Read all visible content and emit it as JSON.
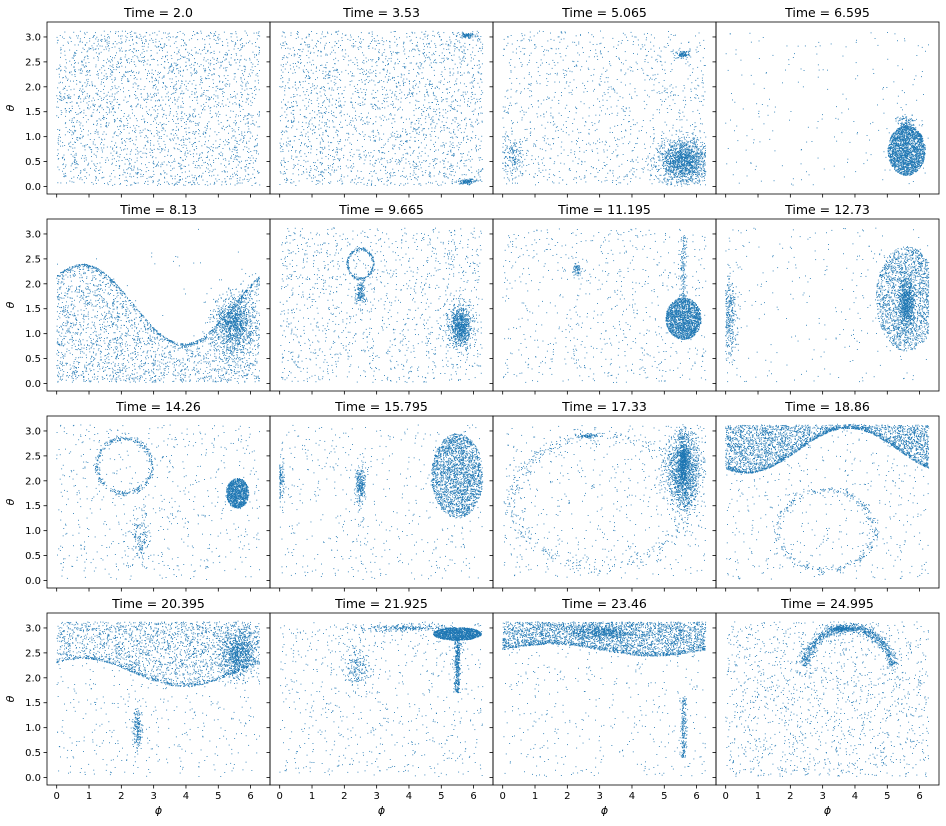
{
  "figure": {
    "xlabel": "ϕ",
    "ylabel": "θ",
    "point_color": "#1f77b4"
  },
  "chart_data": [
    {
      "type": "scatter",
      "title": "Time = 2.0",
      "xlim": [
        -0.3,
        6.6
      ],
      "ylim": [
        -0.15,
        3.3
      ],
      "x_ticks": [
        "0",
        "1",
        "2",
        "3",
        "4",
        "5",
        "6"
      ],
      "y_ticks": [
        "0.0",
        "0.5",
        "1.0",
        "1.5",
        "2.0",
        "2.5",
        "3.0"
      ],
      "features": [
        {
          "kind": "uniform",
          "n": 2600
        }
      ]
    },
    {
      "type": "scatter",
      "title": "Time = 3.53",
      "xlim": [
        -0.3,
        6.6
      ],
      "ylim": [
        -0.15,
        3.3
      ],
      "x_ticks": [
        "0",
        "1",
        "2",
        "3",
        "4",
        "5",
        "6"
      ],
      "y_ticks": [
        "0.0",
        "0.5",
        "1.0",
        "1.5",
        "2.0",
        "2.5",
        "3.0"
      ],
      "features": [
        {
          "kind": "uniform",
          "n": 2300
        },
        {
          "kind": "blob",
          "cx": 5.8,
          "cy": 0.1,
          "rx": 0.3,
          "ry": 0.05,
          "n": 120
        },
        {
          "kind": "blob",
          "cx": 5.8,
          "cy": 3.03,
          "rx": 0.3,
          "ry": 0.05,
          "n": 100
        }
      ]
    },
    {
      "type": "scatter",
      "title": "Time = 5.065",
      "xlim": [
        -0.3,
        6.6
      ],
      "ylim": [
        -0.15,
        3.3
      ],
      "x_ticks": [
        "0",
        "1",
        "2",
        "3",
        "4",
        "5",
        "6"
      ],
      "y_ticks": [
        "0.0",
        "0.5",
        "1.0",
        "1.5",
        "2.0",
        "2.5",
        "3.0"
      ],
      "features": [
        {
          "kind": "uniform",
          "n": 1100
        },
        {
          "kind": "blob",
          "cx": 5.6,
          "cy": 0.5,
          "rx": 0.75,
          "ry": 0.45,
          "n": 1600
        },
        {
          "kind": "blob",
          "cx": 5.6,
          "cy": 2.65,
          "rx": 0.2,
          "ry": 0.08,
          "n": 120
        },
        {
          "kind": "blob",
          "cx": 0.3,
          "cy": 0.6,
          "rx": 0.35,
          "ry": 0.45,
          "n": 150
        }
      ]
    },
    {
      "type": "scatter",
      "title": "Time = 6.595",
      "xlim": [
        -0.3,
        6.6
      ],
      "ylim": [
        -0.15,
        3.3
      ],
      "x_ticks": [
        "0",
        "1",
        "2",
        "3",
        "4",
        "5",
        "6"
      ],
      "y_ticks": [
        "0.0",
        "0.5",
        "1.0",
        "1.5",
        "2.0",
        "2.5",
        "3.0"
      ],
      "features": [
        {
          "kind": "uniform",
          "n": 200
        },
        {
          "kind": "disc",
          "cx": 5.6,
          "cy": 0.72,
          "rx": 0.58,
          "ry": 0.5,
          "n": 2200
        },
        {
          "kind": "blob",
          "cx": 5.6,
          "cy": 1.25,
          "rx": 0.3,
          "ry": 0.2,
          "n": 150
        }
      ]
    },
    {
      "type": "scatter",
      "title": "Time = 8.13",
      "xlim": [
        -0.3,
        6.6
      ],
      "ylim": [
        -0.15,
        3.3
      ],
      "x_ticks": [
        "0",
        "1",
        "2",
        "3",
        "4",
        "5",
        "6"
      ],
      "y_ticks": [
        "0.0",
        "0.5",
        "1.0",
        "1.5",
        "2.0",
        "2.5",
        "3.0"
      ],
      "features": [
        {
          "kind": "wave",
          "base": 1.6,
          "amp": 0.8,
          "phase": 0.8,
          "side": "below",
          "n": 2200,
          "edge": 500
        },
        {
          "kind": "blob",
          "cx": 5.5,
          "cy": 1.2,
          "rx": 0.6,
          "ry": 0.6,
          "n": 1100
        },
        {
          "kind": "uniform",
          "n": 60
        }
      ]
    },
    {
      "type": "scatter",
      "title": "Time = 9.665",
      "xlim": [
        -0.3,
        6.6
      ],
      "ylim": [
        -0.15,
        3.3
      ],
      "x_ticks": [
        "0",
        "1",
        "2",
        "3",
        "4",
        "5",
        "6"
      ],
      "y_ticks": [
        "0.0",
        "0.5",
        "1.0",
        "1.5",
        "2.0",
        "2.5",
        "3.0"
      ],
      "features": [
        {
          "kind": "uniform",
          "n": 1300
        },
        {
          "kind": "blob",
          "cx": 5.6,
          "cy": 1.15,
          "rx": 0.35,
          "ry": 0.4,
          "n": 900
        },
        {
          "kind": "ring",
          "cx": 2.5,
          "cy": 2.4,
          "rx": 0.4,
          "ry": 0.3,
          "n": 220
        },
        {
          "kind": "blob",
          "cx": 2.5,
          "cy": 1.8,
          "rx": 0.15,
          "ry": 0.25,
          "n": 150
        }
      ]
    },
    {
      "type": "scatter",
      "title": "Time = 11.195",
      "xlim": [
        -0.3,
        6.6
      ],
      "ylim": [
        -0.15,
        3.3
      ],
      "x_ticks": [
        "0",
        "1",
        "2",
        "3",
        "4",
        "5",
        "6"
      ],
      "y_ticks": [
        "0.0",
        "0.5",
        "1.0",
        "1.5",
        "2.0",
        "2.5",
        "3.0"
      ],
      "features": [
        {
          "kind": "uniform",
          "n": 700
        },
        {
          "kind": "disc",
          "cx": 5.6,
          "cy": 1.3,
          "rx": 0.55,
          "ry": 0.42,
          "n": 1800
        },
        {
          "kind": "vline",
          "x": 5.6,
          "y0": 1.7,
          "y1": 2.95,
          "n": 150
        },
        {
          "kind": "blob",
          "cx": 2.3,
          "cy": 2.3,
          "rx": 0.12,
          "ry": 0.12,
          "n": 60
        }
      ]
    },
    {
      "type": "scatter",
      "title": "Time = 12.73",
      "xlim": [
        -0.3,
        6.6
      ],
      "ylim": [
        -0.15,
        3.3
      ],
      "x_ticks": [
        "0",
        "1",
        "2",
        "3",
        "4",
        "5",
        "6"
      ],
      "y_ticks": [
        "0.0",
        "0.5",
        "1.0",
        "1.5",
        "2.0",
        "2.5",
        "3.0"
      ],
      "features": [
        {
          "kind": "uniform",
          "n": 250
        },
        {
          "kind": "disc",
          "cx": 5.6,
          "cy": 1.7,
          "rx": 0.95,
          "ry": 1.05,
          "n": 2000
        },
        {
          "kind": "blob",
          "cx": 5.6,
          "cy": 1.6,
          "rx": 0.25,
          "ry": 0.5,
          "n": 700
        },
        {
          "kind": "blob",
          "cx": 0.1,
          "cy": 1.4,
          "rx": 0.25,
          "ry": 0.9,
          "n": 400
        }
      ]
    },
    {
      "type": "scatter",
      "title": "Time = 14.26",
      "xlim": [
        -0.3,
        6.6
      ],
      "ylim": [
        -0.15,
        3.3
      ],
      "x_ticks": [
        "0",
        "1",
        "2",
        "3",
        "4",
        "5",
        "6"
      ],
      "y_ticks": [
        "0.0",
        "0.5",
        "1.0",
        "1.5",
        "2.0",
        "2.5",
        "3.0"
      ],
      "features": [
        {
          "kind": "uniform",
          "n": 650
        },
        {
          "kind": "disc",
          "cx": 5.6,
          "cy": 1.75,
          "rx": 0.35,
          "ry": 0.3,
          "n": 1100
        },
        {
          "kind": "ring",
          "cx": 2.1,
          "cy": 2.3,
          "rx": 0.85,
          "ry": 0.55,
          "n": 350
        },
        {
          "kind": "blob",
          "cx": 2.6,
          "cy": 0.9,
          "rx": 0.3,
          "ry": 0.5,
          "n": 150
        }
      ]
    },
    {
      "type": "scatter",
      "title": "Time = 15.795",
      "xlim": [
        -0.3,
        6.6
      ],
      "ylim": [
        -0.15,
        3.3
      ],
      "x_ticks": [
        "0",
        "1",
        "2",
        "3",
        "4",
        "5",
        "6"
      ],
      "y_ticks": [
        "0.0",
        "0.5",
        "1.0",
        "1.5",
        "2.0",
        "2.5",
        "3.0"
      ],
      "features": [
        {
          "kind": "uniform",
          "n": 500
        },
        {
          "kind": "disc",
          "cx": 5.5,
          "cy": 2.1,
          "rx": 0.8,
          "ry": 0.85,
          "n": 2200
        },
        {
          "kind": "blob",
          "cx": 2.5,
          "cy": 1.9,
          "rx": 0.15,
          "ry": 0.4,
          "n": 250
        },
        {
          "kind": "blob",
          "cx": 0.0,
          "cy": 2.0,
          "rx": 0.12,
          "ry": 0.45,
          "n": 200
        }
      ]
    },
    {
      "type": "scatter",
      "title": "Time = 17.33",
      "xlim": [
        -0.3,
        6.6
      ],
      "ylim": [
        -0.15,
        3.3
      ],
      "x_ticks": [
        "0",
        "1",
        "2",
        "3",
        "4",
        "5",
        "6"
      ],
      "y_ticks": [
        "0.0",
        "0.5",
        "1.0",
        "1.5",
        "2.0",
        "2.5",
        "3.0"
      ],
      "features": [
        {
          "kind": "uniform",
          "n": 500
        },
        {
          "kind": "blob",
          "cx": 5.6,
          "cy": 2.2,
          "rx": 0.55,
          "ry": 0.8,
          "n": 1500
        },
        {
          "kind": "blob",
          "cx": 5.6,
          "cy": 2.4,
          "rx": 0.15,
          "ry": 0.5,
          "n": 500
        },
        {
          "kind": "ring",
          "cx": 3.0,
          "cy": 1.6,
          "rx": 2.7,
          "ry": 1.3,
          "n": 500
        },
        {
          "kind": "blob",
          "cx": 2.6,
          "cy": 2.9,
          "rx": 0.3,
          "ry": 0.05,
          "n": 80
        }
      ]
    },
    {
      "type": "scatter",
      "title": "Time = 18.86",
      "xlim": [
        -0.3,
        6.6
      ],
      "ylim": [
        -0.15,
        3.3
      ],
      "x_ticks": [
        "0",
        "1",
        "2",
        "3",
        "4",
        "5",
        "6"
      ],
      "y_ticks": [
        "0.0",
        "0.5",
        "1.0",
        "1.5",
        "2.0",
        "2.5",
        "3.0"
      ],
      "features": [
        {
          "kind": "wave",
          "base": 2.6,
          "amp": 0.45,
          "phase": 3.8,
          "side": "above",
          "n": 2400,
          "edge": 700
        },
        {
          "kind": "uniform",
          "n": 500
        },
        {
          "kind": "ring",
          "cx": 3.1,
          "cy": 1.0,
          "rx": 1.5,
          "ry": 0.8,
          "n": 350
        }
      ]
    },
    {
      "type": "scatter",
      "title": "Time = 20.395",
      "xlim": [
        -0.3,
        6.6
      ],
      "ylim": [
        -0.15,
        3.3
      ],
      "x_ticks": [
        "0",
        "1",
        "2",
        "3",
        "4",
        "5",
        "6"
      ],
      "y_ticks": [
        "0.0",
        "0.5",
        "1.0",
        "1.5",
        "2.0",
        "2.5",
        "3.0"
      ],
      "features": [
        {
          "kind": "wave",
          "base": 2.1,
          "amp": 0.28,
          "phase": 0.8,
          "side": "above",
          "n": 1800,
          "edge": 400
        },
        {
          "kind": "blob",
          "cx": 5.6,
          "cy": 2.5,
          "rx": 0.5,
          "ry": 0.5,
          "n": 900
        },
        {
          "kind": "uniform",
          "n": 500
        },
        {
          "kind": "blob",
          "cx": 2.5,
          "cy": 1.0,
          "rx": 0.15,
          "ry": 0.45,
          "n": 200
        }
      ]
    },
    {
      "type": "scatter",
      "title": "Time = 21.925",
      "xlim": [
        -0.3,
        6.6
      ],
      "ylim": [
        -0.15,
        3.3
      ],
      "x_ticks": [
        "0",
        "1",
        "2",
        "3",
        "4",
        "5",
        "6"
      ],
      "y_ticks": [
        "0.0",
        "0.5",
        "1.0",
        "1.5",
        "2.0",
        "2.5",
        "3.0"
      ],
      "features": [
        {
          "kind": "uniform",
          "n": 700
        },
        {
          "kind": "disc",
          "cx": 5.5,
          "cy": 2.88,
          "rx": 0.75,
          "ry": 0.13,
          "n": 1500
        },
        {
          "kind": "vline",
          "x": 5.5,
          "y0": 1.7,
          "y1": 2.8,
          "n": 400
        },
        {
          "kind": "blob",
          "cx": 2.4,
          "cy": 2.2,
          "rx": 0.4,
          "ry": 0.5,
          "n": 200
        },
        {
          "kind": "blob",
          "cx": 3.8,
          "cy": 3.0,
          "rx": 1.4,
          "ry": 0.08,
          "n": 250
        }
      ]
    },
    {
      "type": "scatter",
      "title": "Time = 23.46",
      "xlim": [
        -0.3,
        6.6
      ],
      "ylim": [
        -0.15,
        3.3
      ],
      "x_ticks": [
        "0",
        "1",
        "2",
        "3",
        "4",
        "5",
        "6"
      ],
      "y_ticks": [
        "0.0",
        "0.5",
        "1.0",
        "1.5",
        "2.0",
        "2.5",
        "3.0"
      ],
      "features": [
        {
          "kind": "wave",
          "base": 2.55,
          "amp": 0.12,
          "phase": 1.5,
          "side": "above",
          "n": 2600,
          "edge": 400
        },
        {
          "kind": "blob",
          "cx": 3.0,
          "cy": 2.9,
          "rx": 1.0,
          "ry": 0.15,
          "n": 500
        },
        {
          "kind": "uniform",
          "n": 450
        },
        {
          "kind": "vline",
          "x": 5.6,
          "y0": 0.4,
          "y1": 1.6,
          "n": 200
        }
      ]
    },
    {
      "type": "scatter",
      "title": "Time = 24.995",
      "xlim": [
        -0.3,
        6.6
      ],
      "ylim": [
        -0.15,
        3.3
      ],
      "x_ticks": [
        "0",
        "1",
        "2",
        "3",
        "4",
        "5",
        "6"
      ],
      "y_ticks": [
        "0.0",
        "0.5",
        "1.0",
        "1.5",
        "2.0",
        "2.5",
        "3.0"
      ],
      "features": [
        {
          "kind": "uniform",
          "n": 1500
        },
        {
          "kind": "arc",
          "cx": 3.8,
          "cy": 2.1,
          "rx": 1.4,
          "ry": 0.9,
          "n": 900
        },
        {
          "kind": "blob",
          "cx": 3.6,
          "cy": 2.98,
          "rx": 0.4,
          "ry": 0.05,
          "n": 200
        }
      ]
    }
  ]
}
